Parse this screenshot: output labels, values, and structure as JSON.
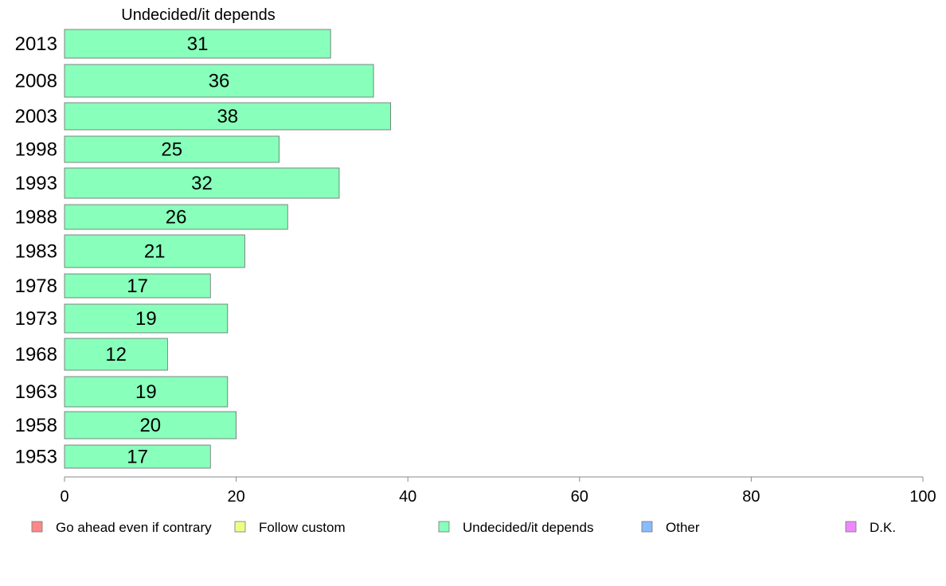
{
  "chart_data": {
    "type": "bar",
    "orientation": "horizontal",
    "title": "Undecided/it depends",
    "categories": [
      "2013",
      "2008",
      "2003",
      "1998",
      "1993",
      "1988",
      "1983",
      "1978",
      "1973",
      "1968",
      "1963",
      "1958",
      "1953"
    ],
    "series": [
      {
        "name": "Undecided/it depends",
        "color": "#88ffbb",
        "values": [
          31,
          36,
          38,
          25,
          32,
          26,
          21,
          17,
          19,
          12,
          19,
          20,
          17
        ]
      }
    ],
    "xlim": [
      0,
      100
    ],
    "xticks": [
      "0",
      "20",
      "40",
      "60",
      "80",
      "100"
    ],
    "grid": false,
    "legend_position": "bottom",
    "legend": [
      {
        "label": "Go ahead even if contrary",
        "color": "#ff8888"
      },
      {
        "label": "Follow custom",
        "color": "#eeff88"
      },
      {
        "label": "Undecided/it depends",
        "color": "#88ffbb"
      },
      {
        "label": "Other",
        "color": "#88bbff"
      },
      {
        "label": "D.K.",
        "color": "#ee88ff"
      }
    ]
  }
}
